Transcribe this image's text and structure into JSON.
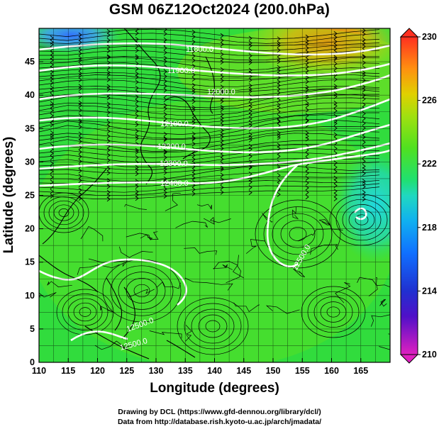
{
  "title": "GSM 06Z12Oct2024 (200.0hPa)",
  "xaxis": {
    "label": "Longitude (degrees)",
    "ticks": [
      "110",
      "115",
      "120",
      "125",
      "130",
      "135",
      "140",
      "145",
      "150",
      "155",
      "160",
      "165"
    ],
    "range": [
      110,
      170
    ]
  },
  "yaxis": {
    "label": "Latitude (degrees)",
    "ticks": [
      "0",
      "5",
      "10",
      "15",
      "20",
      "25",
      "30",
      "35",
      "40",
      "45"
    ],
    "range": [
      0,
      50
    ]
  },
  "colorbar": {
    "ticks": [
      "210",
      "214",
      "218",
      "222",
      "226",
      "230"
    ],
    "range": [
      210,
      230
    ],
    "colors": [
      "#e020c0",
      "#3020d0",
      "#1080ff",
      "#20d0d8",
      "#20e060",
      "#70e020",
      "#c0e010",
      "#f0c000",
      "#ff8010",
      "#ff3020"
    ]
  },
  "contour_labels": [
    "11800.0",
    "11900.0",
    "12000.0",
    "12100.0",
    "12200.0",
    "12300.0",
    "12400.0",
    "12500.0",
    "12500.0",
    "12500.0"
  ],
  "credits": {
    "line1": "Drawing by DCL (https://www.gfd-dennou.org/library/dcl/)",
    "line2": "Data from http://database.rish.kyoto-u.ac.jp/arch/jmadata/"
  }
}
